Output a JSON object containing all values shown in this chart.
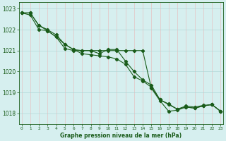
{
  "xlabel": "Graphe pression niveau de la mer (hPa)",
  "hours": [
    0,
    1,
    2,
    3,
    4,
    5,
    6,
    7,
    8,
    9,
    10,
    11,
    12,
    13,
    14,
    15,
    16,
    17,
    18,
    19,
    20,
    21,
    22,
    23
  ],
  "line1": [
    1022.8,
    1022.8,
    1022.2,
    1022.0,
    1021.75,
    1021.3,
    1021.05,
    1021.0,
    1021.0,
    1020.85,
    1021.05,
    1021.05,
    1020.5,
    1020.0,
    1019.6,
    1019.35,
    1018.65,
    1018.45,
    1018.2,
    1018.35,
    1018.3,
    1018.38,
    1018.42,
    1018.1
  ],
  "line2": [
    1022.8,
    1022.8,
    1022.2,
    1021.95,
    1021.65,
    1021.3,
    1021.05,
    1020.85,
    1020.8,
    1020.75,
    1020.7,
    1020.6,
    1020.35,
    1019.75,
    1019.55,
    1019.25,
    1018.65,
    1018.42,
    1018.2,
    1018.3,
    1018.25,
    1018.35,
    1018.42,
    1018.1
  ],
  "line3": [
    1022.8,
    1022.7,
    1022.0,
    1021.95,
    1021.65,
    1021.1,
    1021.0,
    1021.0,
    1021.0,
    1021.0,
    1021.0,
    1021.0,
    1021.0,
    1021.0,
    1021.0,
    1019.2,
    1018.6,
    1018.1,
    1018.15,
    1018.3,
    1018.25,
    1018.35,
    1018.42,
    1018.1
  ],
  "ylim": [
    1017.5,
    1023.3
  ],
  "yticks": [
    1018,
    1019,
    1020,
    1021,
    1022,
    1023
  ],
  "bg_color": "#d6efef",
  "line_color": "#1a5c1a",
  "grid_color_v": "#e8b8b8",
  "grid_color_h": "#aad4d4",
  "xlabel_color": "#1a5c1a",
  "tick_color": "#1a5c1a",
  "border_color": "#1a5c1a",
  "markersize": 2.2,
  "linewidth": 0.8
}
